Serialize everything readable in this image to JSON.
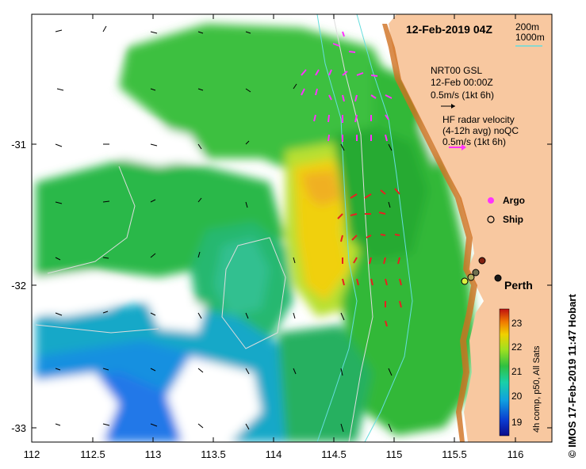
{
  "title": "12-Feb-2019 04Z",
  "isobath_legend": {
    "line1": "200m",
    "line2": "1000m",
    "color": "#66dddd"
  },
  "gsl_legend": {
    "line1": "NRT00 GSL",
    "line2": "12-Feb 00:00Z",
    "line3": "0.5m/s (1kt 6h)"
  },
  "radar_legend": {
    "line1": "HF radar velocity",
    "line2": "(4-12h avg) noQC",
    "line3": "0.5m/s (1kt 6h)"
  },
  "argo_label": "Argo",
  "ship_label": "Ship",
  "city_label": "Perth",
  "colorbar": {
    "ticks": [
      "23",
      "22",
      "21",
      "20",
      "19"
    ],
    "caption": "4h comp, p50, All Sats"
  },
  "credit": "© IMOS 17-Feb-2019 11:47 Hobart",
  "x_ticks": [
    "112",
    "112.5",
    "113",
    "113.5",
    "114",
    "114.5",
    "115",
    "115.5",
    "116"
  ],
  "y_ticks": [
    "-31",
    "-32",
    "-33"
  ],
  "colors": {
    "land": "#f8c8a0",
    "gsl_arrows": "#000000",
    "radar_arrows_north": "#ff33ff",
    "radar_arrows_south": "#e82020"
  },
  "chart_data": {
    "type": "heatmap",
    "variable": "sea surface temperature",
    "colorscale_range": [
      18.6,
      23.6
    ],
    "xlim": [
      112,
      116.3
    ],
    "ylim": [
      -33.1,
      -30.1
    ]
  }
}
